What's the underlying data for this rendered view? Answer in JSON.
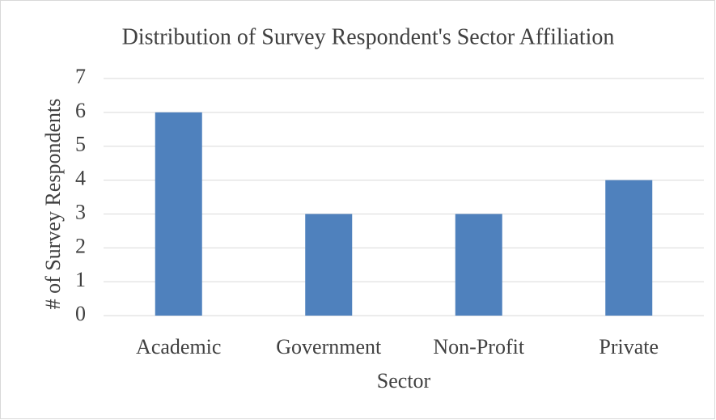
{
  "chart_data": {
    "type": "bar",
    "title": "Distribution of Survey Respondent's Sector Affiliation",
    "x_label": "Sector",
    "y_label": "# of Survey Respondents",
    "categories": [
      "Academic",
      "Government",
      "Non-Profit",
      "Private"
    ],
    "values": [
      6,
      3,
      3,
      4
    ],
    "color": "#4f81bd",
    "ylim": [
      0,
      7
    ],
    "yticks": [
      0,
      1,
      2,
      3,
      4,
      5,
      6,
      7
    ],
    "grid": true
  }
}
